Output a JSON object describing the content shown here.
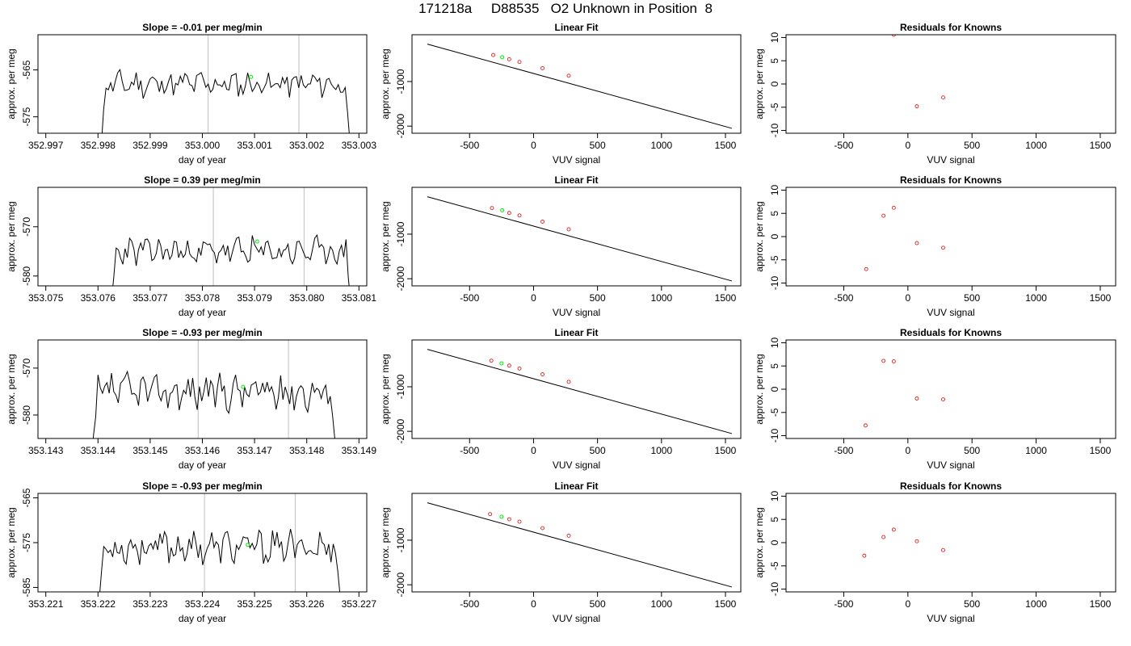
{
  "page_title": "171218a     D88535   O2 Unknown in Position  8",
  "colors": {
    "line": "#000000",
    "gridline": "#c8c8c8",
    "highlight": "#00ee00",
    "known": "#dd2222"
  },
  "chart_data": [
    {
      "type": "line",
      "panel": "timeseries",
      "row": 0,
      "title": "Slope =  -0.01  per meg/min",
      "xlabel": "day of year",
      "ylabel": "approx. per meg",
      "xlim": [
        352.99685,
        353.00315
      ],
      "ylim": [
        -578.5,
        -557.5
      ],
      "xticks": [
        352.997,
        352.998,
        352.999,
        353.0,
        353.001,
        353.002,
        353.003
      ],
      "xtick_labels": [
        "352.997",
        "352.998",
        "352.999",
        "353.000",
        "353.001",
        "353.002",
        "353.003"
      ],
      "yticks": [
        -565,
        -575
      ],
      "ytick_labels": [
        "-565",
        "-575"
      ],
      "vlines": [
        353.00011,
        353.00185
      ],
      "series": [
        {
          "x_start": 352.99802,
          "x_end": 353.00287,
          "base": -568,
          "amp": 2.2,
          "seed": 11,
          "start_drop": -586,
          "end_drop": -586
        }
      ],
      "highlight_point": {
        "x": 353.00093,
        "y": -566.5
      }
    },
    {
      "type": "line",
      "panel": "timeseries",
      "row": 1,
      "title": "Slope =  0.39  per meg/min",
      "xlabel": "day of year",
      "ylabel": "approx. per meg",
      "xlim": [
        353.07485,
        353.08115
      ],
      "ylim": [
        -582,
        -562
      ],
      "xticks": [
        353.075,
        353.076,
        353.077,
        353.078,
        353.079,
        353.08,
        353.081
      ],
      "xtick_labels": [
        "353.075",
        "353.076",
        "353.077",
        "353.078",
        "353.079",
        "353.080",
        "353.081"
      ],
      "yticks": [
        -570,
        -580
      ],
      "ytick_labels": [
        "-570",
        "-580"
      ],
      "vlines": [
        353.07821,
        353.07995
      ],
      "series": [
        {
          "x_start": 353.07622,
          "x_end": 353.08088,
          "base": -575,
          "amp": 2.3,
          "seed": 23,
          "start_drop": -590,
          "end_drop": -590
        }
      ],
      "highlight_point": {
        "x": 353.07905,
        "y": -573
      }
    },
    {
      "type": "line",
      "panel": "timeseries",
      "row": 2,
      "title": "Slope =  -0.93  per meg/min",
      "xlabel": "day of year",
      "ylabel": "approx. per meg",
      "xlim": [
        353.14285,
        353.14915
      ],
      "ylim": [
        -585,
        -564
      ],
      "xticks": [
        353.143,
        353.144,
        353.145,
        353.146,
        353.147,
        353.148,
        353.149
      ],
      "xtick_labels": [
        "353.143",
        "353.144",
        "353.145",
        "353.146",
        "353.147",
        "353.148",
        "353.149"
      ],
      "yticks": [
        -570,
        -580
      ],
      "ytick_labels": [
        "-570",
        "-580"
      ],
      "vlines": [
        353.14592,
        353.14765
      ],
      "series": [
        {
          "x_start": 353.14387,
          "x_end": 353.14858,
          "base": -575,
          "amp": 3.2,
          "seed": 37,
          "start_drop": -590,
          "end_drop": -590
        }
      ],
      "highlight_point": {
        "x": 353.14678,
        "y": -574
      }
    },
    {
      "type": "line",
      "panel": "timeseries",
      "row": 3,
      "title": "Slope =  -0.93  per meg/min",
      "xlabel": "day of year",
      "ylabel": "approx. per meg",
      "xlim": [
        353.22085,
        353.22715
      ],
      "ylim": [
        -586,
        -564
      ],
      "xticks": [
        353.221,
        353.222,
        353.223,
        353.224,
        353.225,
        353.226,
        353.227
      ],
      "xtick_labels": [
        "353.221",
        "353.222",
        "353.223",
        "353.224",
        "353.225",
        "353.226",
        "353.227"
      ],
      "yticks": [
        -565,
        -575,
        -585
      ],
      "ytick_labels": [
        "-565",
        "-575",
        "-585"
      ],
      "vlines": [
        353.22404,
        353.22578
      ],
      "series": [
        {
          "x_start": 353.22198,
          "x_end": 353.22668,
          "base": -576,
          "amp": 3.0,
          "seed": 53,
          "start_drop": -592,
          "end_drop": -592
        }
      ],
      "highlight_point": {
        "x": 353.22487,
        "y": -575.5
      }
    },
    {
      "type": "scatter",
      "panel": "fit",
      "row": 0,
      "title": "Linear Fit",
      "xlabel": "VUV signal",
      "ylabel": "approx. per meg",
      "xlim": [
        -950,
        1620
      ],
      "ylim": [
        -2160,
        50
      ],
      "xticks": [
        -500,
        0,
        500,
        1000,
        1500
      ],
      "xtick_labels": [
        "-500",
        "0",
        "500",
        "1000",
        "1500"
      ],
      "yticks": [
        -1000,
        -2000
      ],
      "ytick_labels": [
        "-1000",
        "-2000"
      ],
      "fit_line": {
        "x": [
          -830,
          1550
        ],
        "y": [
          -160,
          -2050
        ]
      },
      "known_points": {
        "x": [
          -315,
          -190,
          -110,
          70,
          275
        ],
        "y": [
          -405,
          -500,
          -560,
          -700,
          -870
        ]
      },
      "highlight_point": {
        "x": -245,
        "y": -455
      }
    },
    {
      "type": "scatter",
      "panel": "fit",
      "row": 1,
      "title": "Linear Fit",
      "xlabel": "VUV signal",
      "ylabel": "approx. per meg",
      "xlim": [
        -950,
        1620
      ],
      "ylim": [
        -2160,
        50
      ],
      "xticks": [
        -500,
        0,
        500,
        1000,
        1500
      ],
      "xtick_labels": [
        "-500",
        "0",
        "500",
        "1000",
        "1500"
      ],
      "yticks": [
        -1000,
        -2000
      ],
      "ytick_labels": [
        "-1000",
        "-2000"
      ],
      "fit_line": {
        "x": [
          -830,
          1550
        ],
        "y": [
          -160,
          -2050
        ]
      },
      "known_points": {
        "x": [
          -325,
          -190,
          -110,
          70,
          275
        ],
        "y": [
          -415,
          -525,
          -580,
          -720,
          -890
        ]
      },
      "highlight_point": {
        "x": -245,
        "y": -465
      }
    },
    {
      "type": "scatter",
      "panel": "fit",
      "row": 2,
      "title": "Linear Fit",
      "xlabel": "VUV signal",
      "ylabel": "approx. per meg",
      "xlim": [
        -950,
        1620
      ],
      "ylim": [
        -2160,
        50
      ],
      "xticks": [
        -500,
        0,
        500,
        1000,
        1500
      ],
      "xtick_labels": [
        "-500",
        "0",
        "500",
        "1000",
        "1500"
      ],
      "yticks": [
        -1000,
        -2000
      ],
      "ytick_labels": [
        "-1000",
        "-2000"
      ],
      "fit_line": {
        "x": [
          -830,
          1550
        ],
        "y": [
          -160,
          -2050
        ]
      },
      "known_points": {
        "x": [
          -330,
          -190,
          -110,
          70,
          275
        ],
        "y": [
          -415,
          -525,
          -590,
          -720,
          -890
        ]
      },
      "highlight_point": {
        "x": -250,
        "y": -475
      }
    },
    {
      "type": "scatter",
      "panel": "fit",
      "row": 3,
      "title": "Linear Fit",
      "xlabel": "VUV signal",
      "ylabel": "approx. per meg",
      "xlim": [
        -950,
        1620
      ],
      "ylim": [
        -2160,
        50
      ],
      "xticks": [
        -500,
        0,
        500,
        1000,
        1500
      ],
      "xtick_labels": [
        "-500",
        "0",
        "500",
        "1000",
        "1500"
      ],
      "yticks": [
        -1000,
        -2000
      ],
      "ytick_labels": [
        "-1000",
        "-2000"
      ],
      "fit_line": {
        "x": [
          -830,
          1550
        ],
        "y": [
          -160,
          -2050
        ]
      },
      "known_points": {
        "x": [
          -340,
          -190,
          -110,
          70,
          275
        ],
        "y": [
          -415,
          -530,
          -585,
          -730,
          -900
        ]
      },
      "highlight_point": {
        "x": -250,
        "y": -475
      }
    },
    {
      "type": "scatter",
      "panel": "residuals",
      "row": 0,
      "title": "Residuals for Knowns",
      "xlabel": "VUV signal",
      "ylabel": "approx. per meg",
      "xlim": [
        -950,
        1620
      ],
      "ylim": [
        -10.6,
        10.6
      ],
      "xticks": [
        -500,
        0,
        500,
        1000,
        1500
      ],
      "xtick_labels": [
        "-500",
        "0",
        "500",
        "1000",
        "1500"
      ],
      "yticks": [
        10,
        5,
        0,
        -5,
        -10
      ],
      "ytick_labels": [
        "10",
        "5",
        "0",
        "-5",
        "-10"
      ],
      "known_points": {
        "x": [
          -110,
          70,
          275
        ],
        "y": [
          10.6,
          -4.8,
          -2.9
        ]
      }
    },
    {
      "type": "scatter",
      "panel": "residuals",
      "row": 1,
      "title": "Residuals for Knowns",
      "xlabel": "VUV signal",
      "ylabel": "approx. per meg",
      "xlim": [
        -950,
        1620
      ],
      "ylim": [
        -10.6,
        10.6
      ],
      "xticks": [
        -500,
        0,
        500,
        1000,
        1500
      ],
      "xtick_labels": [
        "-500",
        "0",
        "500",
        "1000",
        "1500"
      ],
      "yticks": [
        10,
        5,
        0,
        -5,
        -10
      ],
      "ytick_labels": [
        "10",
        "5",
        "0",
        "-5",
        "-10"
      ],
      "known_points": {
        "x": [
          -325,
          -190,
          -110,
          70,
          275
        ],
        "y": [
          -7.0,
          4.5,
          6.2,
          -1.4,
          -2.4
        ]
      }
    },
    {
      "type": "scatter",
      "panel": "residuals",
      "row": 2,
      "title": "Residuals for Knowns",
      "xlabel": "VUV signal",
      "ylabel": "approx. per meg",
      "xlim": [
        -950,
        1620
      ],
      "ylim": [
        -10.6,
        10.6
      ],
      "xticks": [
        -500,
        0,
        500,
        1000,
        1500
      ],
      "xtick_labels": [
        "-500",
        "0",
        "500",
        "1000",
        "1500"
      ],
      "yticks": [
        10,
        5,
        0,
        -5,
        -10
      ],
      "ytick_labels": [
        "10",
        "5",
        "0",
        "-5",
        "-10"
      ],
      "known_points": {
        "x": [
          -330,
          -190,
          -110,
          70,
          275
        ],
        "y": [
          -7.8,
          6.1,
          6.0,
          -2.0,
          -2.2
        ]
      }
    },
    {
      "type": "scatter",
      "panel": "residuals",
      "row": 3,
      "title": "Residuals for Knowns",
      "xlabel": "VUV signal",
      "ylabel": "approx. per meg",
      "xlim": [
        -950,
        1620
      ],
      "ylim": [
        -10.6,
        10.6
      ],
      "xticks": [
        -500,
        0,
        500,
        1000,
        1500
      ],
      "xtick_labels": [
        "-500",
        "0",
        "500",
        "1000",
        "1500"
      ],
      "yticks": [
        10,
        5,
        0,
        -5,
        -10
      ],
      "ytick_labels": [
        "10",
        "5",
        "0",
        "-5",
        "-10"
      ],
      "known_points": {
        "x": [
          -340,
          -190,
          -110,
          70,
          275
        ],
        "y": [
          -2.8,
          1.2,
          2.8,
          0.3,
          -1.6
        ]
      }
    }
  ]
}
